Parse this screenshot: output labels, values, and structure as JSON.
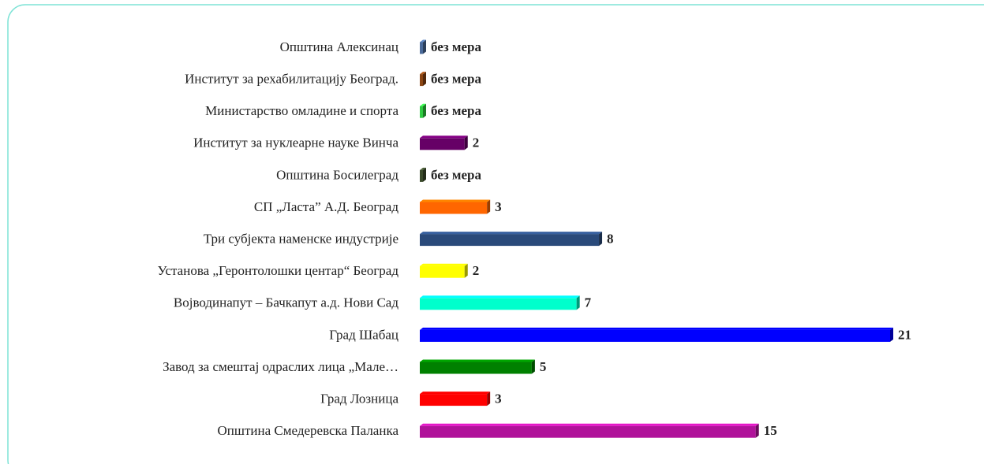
{
  "chart_data": {
    "type": "bar",
    "orientation": "horizontal",
    "categories": [
      "Општина Алексинац",
      "Институт за рехабилитацију Београд.",
      "Министарство омладине и спорта",
      "Институт за нуклеарне науке Винча",
      "Општина Босилеград",
      "СП „Ласта” А.Д. Београд",
      "Три субјекта наменске индустрије",
      "Установа „Геронтолошки центар“ Београд",
      "Војводинапут – Бачкапут а.д. Нови Сад",
      "Град Шабац",
      "Завод за смештај одраслих лица „Мале…",
      "Град Лозница",
      "Општина Смедеревска Паланка"
    ],
    "values": [
      0,
      0,
      0,
      2,
      0,
      3,
      8,
      2,
      7,
      21,
      5,
      3,
      15
    ],
    "value_labels": [
      "без мера",
      "без мера",
      "без мера",
      "2",
      "без мера",
      "3",
      "8",
      "2",
      "7",
      "21",
      "5",
      "3",
      "15"
    ],
    "colors": [
      "#4a6a9a",
      "#8b4513",
      "#2ecc40",
      "#660066",
      "#3a4a2a",
      "#ff6600",
      "#2a4a7a",
      "#ffff00",
      "#00ffcc",
      "#0000ff",
      "#008000",
      "#ff0000",
      "#b0129a"
    ],
    "xlim": [
      0,
      21
    ]
  }
}
